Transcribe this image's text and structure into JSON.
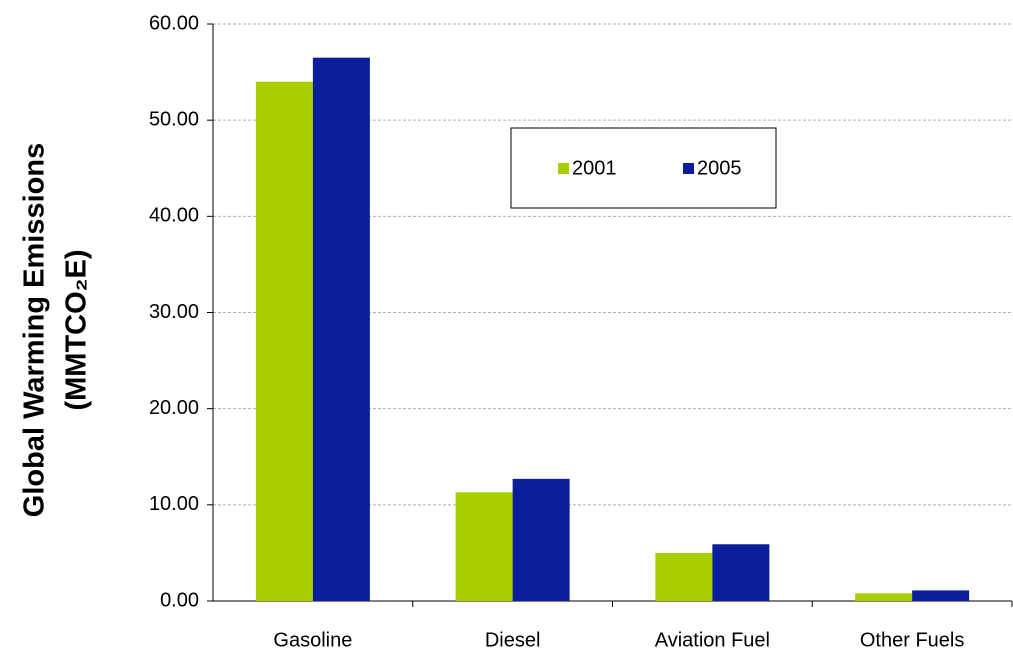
{
  "chart_data": {
    "type": "bar",
    "y_label": [
      "Global Warming Emissions",
      "(MMTCO₂E)"
    ],
    "categories": [
      "Gasoline",
      "Diesel",
      "Aviation Fuel",
      "Other Fuels"
    ],
    "series": [
      {
        "name": "2001",
        "color": "#a6ce00",
        "values": [
          54.0,
          11.3,
          5.0,
          0.8
        ]
      },
      {
        "name": "2005",
        "color": "#0a1e9c",
        "values": [
          56.5,
          12.7,
          5.9,
          1.1
        ]
      }
    ],
    "ylim": [
      0,
      60
    ],
    "yticks": [
      {
        "value": 0,
        "label": "0.00"
      },
      {
        "value": 10,
        "label": "10.00"
      },
      {
        "value": 20,
        "label": "20.00"
      },
      {
        "value": 30,
        "label": "30.00"
      },
      {
        "value": 40,
        "label": "40.00"
      },
      {
        "value": 50,
        "label": "50.00"
      },
      {
        "value": 60,
        "label": "60.00"
      }
    ],
    "grid": true
  }
}
